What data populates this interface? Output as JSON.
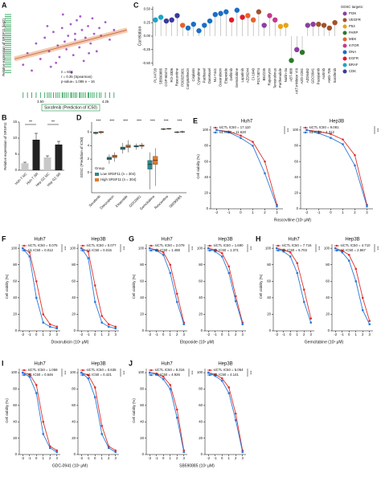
{
  "chart_data": [
    {
      "type": "scatter",
      "panel": "A",
      "ylabel": "Relative expression of SRSF11 (log2)",
      "xlabel": "Sorafenib (Prediction of IC50)",
      "annotations": [
        "n = 608",
        "r = 0.35 (Spearman)",
        "p-value= 1.086 e − 16"
      ],
      "color": "#9b3fc4",
      "rug_color": "#1a9a4a",
      "trend_color": "#e8a070",
      "x": [
        3.3,
        3.35,
        3.4,
        3.45,
        3.5,
        3.55,
        3.6,
        3.62,
        3.65,
        3.7,
        3.72,
        3.75,
        3.78,
        3.8,
        3.82,
        3.85,
        3.88,
        3.9,
        3.92,
        3.95,
        3.98,
        4.0,
        4.02,
        4.05,
        4.08,
        4.1,
        4.12,
        4.15,
        4.18,
        4.2,
        4.25,
        4.3,
        4.35,
        3.58,
        3.68,
        3.86,
        3.96,
        4.06,
        3.76,
        3.9
      ],
      "y": [
        -0.9,
        -0.3,
        -1.2,
        0.2,
        -0.6,
        0.5,
        -0.2,
        -1.0,
        0.8,
        0.1,
        -0.5,
        1.0,
        0.3,
        -0.1,
        0.6,
        1.2,
        -0.4,
        0.4,
        1.4,
        0.0,
        0.9,
        -0.7,
        0.5,
        1.1,
        0.2,
        1.5,
        0.7,
        -0.2,
        1.0,
        0.6,
        1.3,
        0.4,
        0.9,
        1.1,
        -0.8,
        -1.3,
        1.6,
        -0.3,
        1.7,
        0.7
      ],
      "trend_x": [
        3.2,
        4.5
      ],
      "trend_y": [
        -0.6,
        0.9
      ],
      "xlim": [
        3.2,
        4.5
      ],
      "ylim": [
        -2.2,
        2.2
      ],
      "xticks": [
        {
          "value": 3.5,
          "label": "3.50"
        },
        {
          "value": 4.25,
          "label": "4.25"
        }
      ]
    },
    {
      "type": "lollipop",
      "panel": "C",
      "ylabel": "Correlation",
      "categories": [
        "PLX4720",
        "SB590885",
        "CGP-60474",
        "RO-3306",
        "Roscovitine",
        "PD0325901",
        "Camptothecin",
        "Cisplatin",
        "Cytarabine",
        "Paclitaxel",
        "Docetaxel",
        "NU-7441",
        "Doxorubicin",
        "Etoposide",
        "Gefitinib",
        "Gemcitabine",
        "Lapatinib",
        "AZD6244",
        "CI-1040",
        "PD173074",
        "BEZ235",
        "Rapamycin",
        "Temsirolimus",
        "Parthenolide",
        "Nutlin-3a",
        "ABT-888",
        "AKT-inhibitor VIII",
        "AZD-2281",
        "AZD6482",
        "GDC0941",
        "Pazopanib",
        "Axitinib",
        "AMG-706",
        "Sorafenib"
      ],
      "values": [
        0.3,
        0.35,
        0.28,
        0.3,
        0.38,
        0.2,
        0.15,
        0.22,
        0.1,
        0.2,
        0.28,
        0.4,
        0.42,
        0.45,
        0.3,
        0.48,
        0.35,
        0.38,
        0.3,
        0.45,
        0.2,
        0.38,
        0.3,
        0.18,
        0.2,
        -0.45,
        -0.25,
        -0.3,
        0.2,
        0.22,
        0.22,
        0.2,
        0.15,
        0.25
      ],
      "colors": [
        "#1fa3c4",
        "#1fa3c4",
        "#3a3a9a",
        "#3a3a9a",
        "#3a3a9a",
        "#e8612c",
        "#1a6fc4",
        "#1a6fc4",
        "#1a6fc4",
        "#1a6fc4",
        "#1a6fc4",
        "#1a6fc4",
        "#1a6fc4",
        "#1a6fc4",
        "#e0192c",
        "#1a6fc4",
        "#e0192c",
        "#e8612c",
        "#e8612c",
        "#a0522d",
        "#8b3fa0",
        "#c03c8c",
        "#c03c8c",
        "#e8a317",
        "#e8a317",
        "#2a7a2a",
        "#8b3fa0",
        "#2a7a2a",
        "#8b3fa0",
        "#8b3fa0",
        "#a0522d",
        "#a0522d",
        "#a0522d",
        "#a0522d"
      ],
      "ylim": [
        -0.55,
        0.55
      ],
      "yticks": [
        {
          "value": 0.5,
          "label": "0.50"
        },
        {
          "value": 0.25,
          "label": "0.25"
        },
        {
          "value": 0,
          "label": "0.00"
        },
        {
          "value": -0.25,
          "label": "-0.25"
        },
        {
          "value": -0.5,
          "label": "-0.50"
        }
      ],
      "legend_title": "GDSC targets:",
      "legend": [
        {
          "name": "PI3K",
          "color": "#8b3fa0"
        },
        {
          "name": "VEGFR",
          "color": "#a0522d"
        },
        {
          "name": "P53",
          "color": "#e8a317"
        },
        {
          "name": "PARP",
          "color": "#2a7a2a"
        },
        {
          "name": "MEK",
          "color": "#e8612c"
        },
        {
          "name": "mTOR",
          "color": "#c03c8c"
        },
        {
          "name": "DNA",
          "color": "#1a6fc4"
        },
        {
          "name": "EGFR",
          "color": "#e0192c"
        },
        {
          "name": "BRAF",
          "color": "#1fa3c4"
        },
        {
          "name": "CDK",
          "color": "#3a3a9a"
        }
      ]
    },
    {
      "type": "bar",
      "panel": "B",
      "ylabel": "Relative expression of SRSF11",
      "categories": [
        "Huh-7 NC",
        "Huh-7 SR",
        "Hep G2 NC",
        "Hep G2 SR"
      ],
      "values": [
        2.2,
        9.5,
        4.0,
        8.0
      ],
      "errors": [
        0.3,
        2.0,
        0.5,
        1.0
      ],
      "colors": [
        "#c8c8c8",
        "#222222",
        "#c8c8c8",
        "#222222"
      ],
      "ylim": [
        0,
        15
      ],
      "yticks": [
        0,
        5,
        10,
        15
      ],
      "annotations": [
        "**",
        "**"
      ]
    },
    {
      "type": "box",
      "panel": "D",
      "ylabel": "GDSC (Prediction of IC50)",
      "categories": [
        "Sorafenib",
        "Doxorubicin",
        "Etoposide",
        "GDC0941",
        "Gemcitabine",
        "Roscovitine",
        "SB590885"
      ],
      "annotations": [
        "***",
        "***",
        "***",
        "***",
        "***",
        "***",
        "***"
      ],
      "legend_title": "Group",
      "series": [
        {
          "name": "Low SRSF11 (n = 304)",
          "color": "#2a8a8a",
          "boxes": [
            [
              5.6,
              5.8,
              5.9,
              6.0,
              6.1
            ],
            [
              1.3,
              1.9,
              2.1,
              2.3,
              2.7
            ],
            [
              2.8,
              3.4,
              3.6,
              3.8,
              4.4
            ],
            [
              3.4,
              3.8,
              3.9,
              4.0,
              4.3
            ],
            [
              -2.5,
              0.5,
              1.2,
              1.8,
              3.0
            ],
            [
              6.3,
              6.4,
              6.45,
              6.5,
              6.6
            ],
            [
              5.8,
              5.95,
              6.0,
              6.05,
              6.2
            ]
          ]
        },
        {
          "name": "High SRSF11 (n = 304)",
          "color": "#e07b2a",
          "boxes": [
            [
              5.7,
              5.9,
              6.0,
              6.1,
              6.2
            ],
            [
              1.6,
              2.2,
              2.4,
              2.6,
              3.0
            ],
            [
              3.0,
              3.7,
              3.9,
              4.1,
              4.8
            ],
            [
              3.5,
              3.9,
              4.0,
              4.1,
              4.4
            ],
            [
              -2.0,
              1.2,
              1.8,
              2.4,
              3.6
            ],
            [
              6.35,
              6.45,
              6.5,
              6.55,
              6.65
            ],
            [
              5.85,
              6.0,
              6.05,
              6.1,
              6.25
            ]
          ]
        }
      ],
      "ylim": [
        -3,
        7.5
      ],
      "yticks": [
        0,
        2,
        4,
        6
      ]
    },
    {
      "type": "line",
      "panel": "E",
      "ylabel": "Cell viability (%)",
      "xlabel": "Roscovitine (10ˣ μM)",
      "x": [
        -2,
        -1,
        0,
        1,
        2,
        3
      ],
      "xlim": [
        -2.5,
        3.5
      ],
      "xticks": [
        -2,
        -1,
        0,
        1,
        2,
        3
      ],
      "ylim": [
        0,
        105
      ],
      "yticks": [
        0,
        20,
        40,
        60,
        80,
        100
      ],
      "subplots": [
        {
          "title": "Huh7",
          "annotation": "***",
          "series": [
            {
              "name": "siCTL IC50 = 17.110",
              "color": "#e0302a",
              "values": [
                100,
                98,
                93,
                85,
                60,
                5
              ]
            },
            {
              "name": "si1 IC50 = 11.620",
              "color": "#2a78d8",
              "values": [
                100,
                97,
                90,
                80,
                45,
                3
              ]
            }
          ]
        },
        {
          "title": "Hep3B",
          "annotation": "***",
          "series": [
            {
              "name": "siCTL IC50 = 9.081",
              "color": "#e0302a",
              "values": [
                100,
                98,
                95,
                88,
                68,
                5
              ]
            },
            {
              "name": "si1 IC50 = 4.312",
              "color": "#2a78d8",
              "values": [
                100,
                96,
                90,
                82,
                55,
                3
              ]
            }
          ]
        }
      ]
    },
    {
      "type": "line",
      "panel": "F",
      "ylabel": "Cell viability (%)",
      "xlabel": "Doxorubicin (10ˣ μM)",
      "x": [
        -2,
        -1,
        0,
        1,
        2,
        3
      ],
      "xlim": [
        -2.5,
        3.5
      ],
      "xticks": [
        -2,
        -1,
        0,
        1,
        2,
        3
      ],
      "ylim": [
        0,
        105
      ],
      "yticks": [
        0,
        20,
        40,
        60,
        80,
        100
      ],
      "subplots": [
        {
          "title": "Huh7",
          "annotation": "***",
          "series": [
            {
              "name": "siCTL IC50 = 0.075",
              "color": "#e0302a",
              "values": [
                100,
                95,
                60,
                20,
                8,
                5
              ]
            },
            {
              "name": "si1 IC50 = 0.012",
              "color": "#2a78d8",
              "values": [
                100,
                90,
                40,
                10,
                5,
                3
              ]
            }
          ]
        },
        {
          "title": "Hep3B",
          "annotation": "***",
          "series": [
            {
              "name": "siCTL IC50 = 0.077",
              "color": "#e0302a",
              "values": [
                100,
                96,
                55,
                18,
                8,
                5
              ]
            },
            {
              "name": "si1 IC50 = 0.015",
              "color": "#2a78d8",
              "values": [
                100,
                88,
                35,
                10,
                5,
                3
              ]
            }
          ]
        }
      ]
    },
    {
      "type": "line",
      "panel": "G",
      "ylabel": "Cell viability (%)",
      "xlabel": "Etoposide (10ˣ μM)",
      "x": [
        -2,
        -1,
        0,
        1,
        2,
        3
      ],
      "xlim": [
        -2.5,
        3.5
      ],
      "xticks": [
        -2,
        -1,
        0,
        1,
        2,
        3
      ],
      "ylim": [
        0,
        105
      ],
      "yticks": [
        0,
        20,
        40,
        60,
        80,
        100
      ],
      "subplots": [
        {
          "title": "Huh7",
          "annotation": "***",
          "series": [
            {
              "name": "siCTL IC50 = 2.079",
              "color": "#e0302a",
              "values": [
                100,
                98,
                95,
                80,
                45,
                10
              ]
            },
            {
              "name": "si1 IC50 = 1.488",
              "color": "#2a78d8",
              "values": [
                100,
                97,
                92,
                70,
                35,
                8
              ]
            }
          ]
        },
        {
          "title": "Hep3B",
          "annotation": "***",
          "series": [
            {
              "name": "siCTL IC50 = 1.690",
              "color": "#e0302a",
              "values": [
                100,
                98,
                94,
                78,
                42,
                10
              ]
            },
            {
              "name": "si1 IC50 = 1.371",
              "color": "#2a78d8",
              "values": [
                100,
                96,
                90,
                70,
                36,
                8
              ]
            }
          ]
        }
      ]
    },
    {
      "type": "line",
      "panel": "H",
      "ylabel": "Cell viability (%)",
      "xlabel": "Gemcitabine (10ˣ μM)",
      "x": [
        -2,
        -1,
        0,
        1,
        2,
        3
      ],
      "xlim": [
        -2.5,
        3.5
      ],
      "xticks": [
        -2,
        -1,
        0,
        1,
        2,
        3
      ],
      "ylim": [
        0,
        105
      ],
      "yticks": [
        0,
        20,
        40,
        60,
        80,
        100
      ],
      "subplots": [
        {
          "title": "Huh7",
          "annotation": "***",
          "series": [
            {
              "name": "siCTL IC50 = 7.716",
              "color": "#e0302a",
              "values": [
                100,
                98,
                95,
                82,
                50,
                15
              ]
            },
            {
              "name": "si1 IC50 = 6.703",
              "color": "#2a78d8",
              "values": [
                100,
                96,
                90,
                70,
                35,
                10
              ]
            }
          ]
        },
        {
          "title": "Hep3B",
          "annotation": "***",
          "series": [
            {
              "name": "siCTL IC50 = 4.710",
              "color": "#e0302a",
              "values": [
                100,
                97,
                92,
                75,
                40,
                12
              ]
            },
            {
              "name": "si1 IC50 = 2.867",
              "color": "#2a78d8",
              "values": [
                100,
                95,
                85,
                60,
                25,
                8
              ]
            }
          ]
        }
      ]
    },
    {
      "type": "line",
      "panel": "I",
      "ylabel": "Cell viability (%)",
      "xlabel": "GDC-0941 (10ˣ μM)",
      "x": [
        -2,
        -1,
        0,
        1,
        2,
        3
      ],
      "xlim": [
        -2.5,
        3.5
      ],
      "xticks": [
        -2,
        -1,
        0,
        1,
        2,
        3
      ],
      "ylim": [
        0,
        105
      ],
      "yticks": [
        0,
        20,
        40,
        60,
        80,
        100
      ],
      "subplots": [
        {
          "title": "Huh7",
          "annotation": "***",
          "series": [
            {
              "name": "siCTL IC50 = 1.058",
              "color": "#e0302a",
              "values": [
                100,
                98,
                85,
                40,
                10,
                5
              ]
            },
            {
              "name": "si1 IC50 = 0.646",
              "color": "#2a78d8",
              "values": [
                100,
                95,
                75,
                25,
                8,
                3
              ]
            }
          ]
        },
        {
          "title": "Hep3B",
          "annotation": "***",
          "series": [
            {
              "name": "siCTL IC50 = 0.635",
              "color": "#e0302a",
              "values": [
                100,
                97,
                82,
                35,
                10,
                5
              ]
            },
            {
              "name": "si1 IC50 = 0.421",
              "color": "#2a78d8",
              "values": [
                100,
                93,
                70,
                25,
                8,
                3
              ]
            }
          ]
        }
      ]
    },
    {
      "type": "line",
      "panel": "J",
      "ylabel": "Cell viability (%)",
      "xlabel": "SB590885 (10ˣ μM)",
      "x": [
        -2,
        -1,
        0,
        1,
        2,
        3
      ],
      "xlim": [
        -2.5,
        3.5
      ],
      "xticks": [
        -2,
        -1,
        0,
        1,
        2,
        3
      ],
      "ylim": [
        0,
        105
      ],
      "yticks": [
        0,
        20,
        40,
        60,
        80,
        100
      ],
      "subplots": [
        {
          "title": "Huh7",
          "annotation": "***",
          "series": [
            {
              "name": "siCTL IC50 = 8.316",
              "color": "#e0302a",
              "values": [
                100,
                99,
                95,
                85,
                55,
                5
              ]
            },
            {
              "name": "si1 IC50 = 4.926",
              "color": "#2a78d8",
              "values": [
                100,
                98,
                92,
                80,
                45,
                3
              ]
            }
          ]
        },
        {
          "title": "Hep3B",
          "annotation": "***",
          "series": [
            {
              "name": "siCTL IC50 = 5.054",
              "color": "#e0302a",
              "values": [
                100,
                98,
                93,
                82,
                50,
                5
              ]
            },
            {
              "name": "si1 IC50 = 4.141",
              "color": "#2a78d8",
              "values": [
                100,
                96,
                90,
                75,
                42,
                3
              ]
            }
          ]
        }
      ]
    }
  ]
}
